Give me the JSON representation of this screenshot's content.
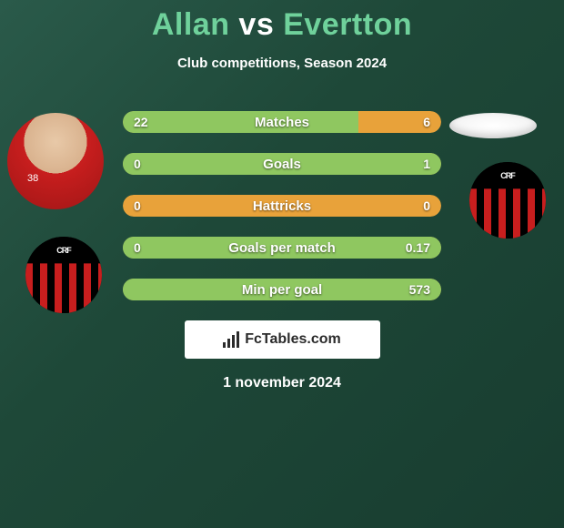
{
  "title": {
    "prefix": "Allan",
    "mid": " vs ",
    "suffix": "Evertton",
    "prefix_color": "#6fd19b",
    "mid_color": "#ffffff",
    "suffix_color": "#6fd19b"
  },
  "subtitle": "Club competitions, Season 2024",
  "player1_number": "38",
  "crest_monogram": "CRF",
  "stats": {
    "bar_base_color": "#e8a23a",
    "bar_highlight_color": "#8fc760",
    "rows": [
      {
        "label": "Matches",
        "left": "22",
        "right": "6",
        "left_pct": 74,
        "right_pct": 26,
        "dominant": "left"
      },
      {
        "label": "Goals",
        "left": "0",
        "right": "1",
        "left_pct": 0,
        "right_pct": 100,
        "dominant": "right"
      },
      {
        "label": "Hattricks",
        "left": "0",
        "right": "0",
        "left_pct": 0,
        "right_pct": 0,
        "dominant": "none"
      },
      {
        "label": "Goals per match",
        "left": "0",
        "right": "0.17",
        "left_pct": 0,
        "right_pct": 100,
        "dominant": "right"
      },
      {
        "label": "Min per goal",
        "left": "",
        "right": "573",
        "left_pct": 0,
        "right_pct": 100,
        "dominant": "right"
      }
    ]
  },
  "logo_text": "FcTables.com",
  "date": "1 november 2024",
  "colors": {
    "background_from": "#2a5a4a",
    "background_to": "#183d30",
    "text": "#ffffff"
  }
}
